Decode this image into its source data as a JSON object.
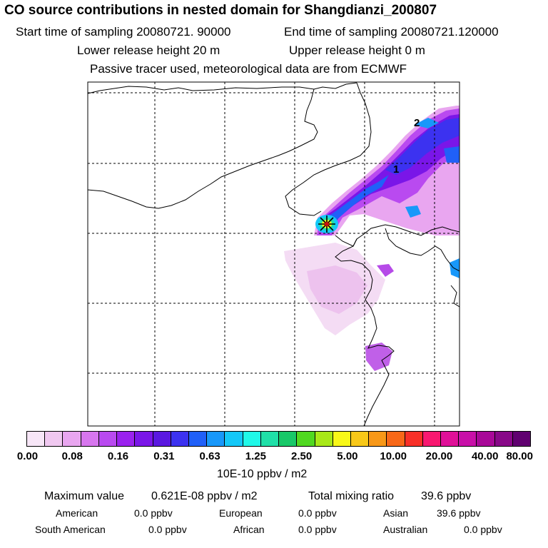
{
  "header": {
    "title": "CO  source contributions in nested domain for Shangdianzi_200807",
    "start_time": "Start time of sampling 20080721. 90000",
    "end_time": "End time of sampling 20080721.120000",
    "lower_release": "Lower release height   20 m",
    "upper_release": "Upper release height    0 m",
    "tracer_note": "Passive tracer used, meteorological data are from ECMWF"
  },
  "map": {
    "point_labels": [
      "1",
      "2"
    ],
    "station_marker": "star-icon"
  },
  "colorbar": {
    "colors": [
      "#f7e6f7",
      "#f0c8f0",
      "#e9a6f0",
      "#d776ee",
      "#b94af0",
      "#9a22ee",
      "#7a16e8",
      "#5a18e0",
      "#3c32f0",
      "#2060f8",
      "#1898fa",
      "#14c8f8",
      "#20f8e8",
      "#20e0a8",
      "#18c868",
      "#50d820",
      "#a8e818",
      "#f8f818",
      "#f8c818",
      "#f89818",
      "#f86818",
      "#f83028",
      "#f81870",
      "#e01098",
      "#c810a8",
      "#a80898",
      "#880888",
      "#600070"
    ],
    "tick_labels": [
      "0.00",
      "0.08",
      "0.16",
      "0.31",
      "0.63",
      "1.25",
      "2.50",
      "5.00",
      "10.00",
      "20.00",
      "40.00",
      "80.00"
    ],
    "unit": "10E-10 ppbv / m2"
  },
  "summary": {
    "max_label": "Maximum value",
    "max_value": "0.621E-08 ppbv / m2",
    "total_label": "Total mixing ratio",
    "total_value": "39.6 ppbv",
    "regions": [
      {
        "name": "American",
        "value": "0.0 ppbv"
      },
      {
        "name": "European",
        "value": "0.0 ppbv"
      },
      {
        "name": "Asian",
        "value": "39.6 ppbv"
      },
      {
        "name": "South American",
        "value": "0.0 ppbv"
      },
      {
        "name": "African",
        "value": "0.0 ppbv"
      },
      {
        "name": "Australian",
        "value": "0.0 ppbv"
      }
    ]
  }
}
